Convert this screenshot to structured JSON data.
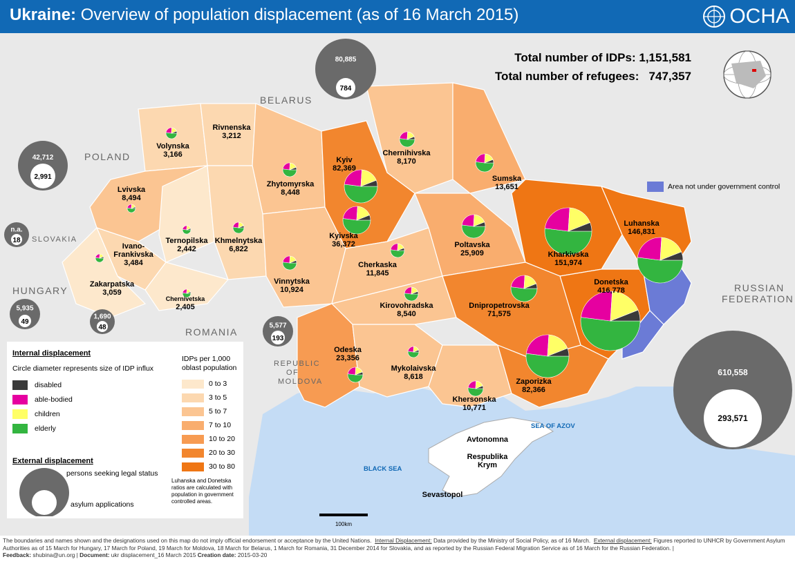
{
  "header": {
    "title_bold": "Ukraine:",
    "title_rest": " Overview of population displacement (as of 16 March 2015)",
    "logo_text": "OCHA"
  },
  "totals": {
    "idps_label": "Total number of IDPs:",
    "idps_value": "1,151,581",
    "refugees_label": "Total number of refugees:",
    "refugees_value": "747,357"
  },
  "countries": {
    "belarus": "BELARUS",
    "poland": "POLAND",
    "slovakia": "SLOVAKIA",
    "hungary": "HUNGARY",
    "romania": "ROMANIA",
    "moldova_1": "REPUBLIC",
    "moldova_2": "OF",
    "moldova_3": "MOLDOVA",
    "russia_1": "RUSSIAN",
    "russia_2": "FEDERATION"
  },
  "seas": {
    "black_sea": "BLACK SEA",
    "azov": "SEA OF AZOV"
  },
  "crimea": {
    "name_1": "Avtonomna",
    "name_2": "Respublika",
    "name_3": "Krym",
    "city": "Sevastopol"
  },
  "oblasts": [
    {
      "name": "Volynska",
      "value": "3,166"
    },
    {
      "name": "Rivnenska",
      "value": "3,212"
    },
    {
      "name": "Lvivska",
      "value": "8,494"
    },
    {
      "name": "Zhytomyrska",
      "value": "8,448"
    },
    {
      "name": "Kyiv",
      "value": "82,369"
    },
    {
      "name": "Chernihivska",
      "value": "8,170"
    },
    {
      "name": "Sumska",
      "value": "13,651"
    },
    {
      "name": "Ternopilska",
      "value": "2,442"
    },
    {
      "name": "Khmelnytska",
      "value": "6,822"
    },
    {
      "name": "Kyivska",
      "value": "36,372"
    },
    {
      "name": "Ivano-",
      "value": ""
    },
    {
      "name": "Frankivska",
      "value": "3,484"
    },
    {
      "name": "Zakarpatska",
      "value": "3,059"
    },
    {
      "name": "Chernivetska",
      "value": "2,405"
    },
    {
      "name": "Vinnytska",
      "value": "10,924"
    },
    {
      "name": "Cherkaska",
      "value": "11,845"
    },
    {
      "name": "Poltavska",
      "value": "25,909"
    },
    {
      "name": "Kharkivska",
      "value": "151,974"
    },
    {
      "name": "Luhanska",
      "value": "146,831"
    },
    {
      "name": "Donetska",
      "value": "416,778"
    },
    {
      "name": "Kirovohradska",
      "value": "8,540"
    },
    {
      "name": "Dnipropetrovska",
      "value": "71,575"
    },
    {
      "name": "Odeska",
      "value": "23,356"
    },
    {
      "name": "Mykolaivska",
      "value": "8,618"
    },
    {
      "name": "Khersonska",
      "value": "10,771"
    },
    {
      "name": "Zaporizka",
      "value": "82,366"
    }
  ],
  "external": [
    {
      "country": "Belarus",
      "seeking": "80,885",
      "asylum": "784"
    },
    {
      "country": "Poland",
      "seeking": "42,712",
      "asylum": "2,991"
    },
    {
      "country": "Slovakia",
      "seeking": "n.a.",
      "asylum": "18"
    },
    {
      "country": "Hungary",
      "seeking": "5,935",
      "asylum": "49"
    },
    {
      "country": "Romania",
      "seeking": "1,690",
      "asylum": "48"
    },
    {
      "country": "Moldova",
      "seeking": "5,577",
      "asylum": "193"
    },
    {
      "country": "Russian Federation",
      "seeking": "610,558",
      "asylum": "293,571"
    }
  ],
  "legend": {
    "internal_title": "Internal displacement",
    "circle_note": "Circle diameter represents size of IDP influx",
    "categories": [
      {
        "label": "disabled",
        "color": "#3a3a3a"
      },
      {
        "label": "able-bodied",
        "color": "#e600a0"
      },
      {
        "label": "children",
        "color": "#ffff66"
      },
      {
        "label": "elderly",
        "color": "#33b540"
      }
    ],
    "ramp_title_1": "IDPs per 1,000",
    "ramp_title_2": "oblast population",
    "ramp": [
      {
        "label": "0 to 3",
        "color": "#fde8cc"
      },
      {
        "label": "3 to 5",
        "color": "#fcd8b0"
      },
      {
        "label": "5 to 7",
        "color": "#fbc592"
      },
      {
        "label": "7  to  10",
        "color": "#f9ad6e"
      },
      {
        "label": "10  to 20",
        "color": "#f79b52"
      },
      {
        "label": "20  to 30",
        "color": "#f2862e"
      },
      {
        "label": "30  to 80",
        "color": "#ef7614"
      }
    ],
    "ramp_note": "Luhanska and Donetska ratios are calculated with population in government controlled areas.",
    "external_title": "External displacement",
    "seeking_label": "persons seeking legal status",
    "asylum_label": "asylum applications",
    "gov_area_label": "Area not under government control"
  },
  "scale_label": "100km",
  "footer": {
    "disclaimer": "The boundaries and names shown and the designations used on this map do not imply official endorsement or acceptance by the United Nations.",
    "internal_label": "Internal Displacement:",
    "internal_text": "Data provided by the Ministry of Social Policy, as of 16 March.",
    "external_label": "External displacement:",
    "external_text": "Figures reported to UNHCR by Government Asylum Authorities as of 15 March for Hungary, 17 March for Poland, 19 March for Moldova, 18 March for Belarus, 1 March for Romania, 31 December 2014 for Slovakia, and as reported by the Russian Federal Migration Service as of 16 March for the Russian Federation.  |",
    "feedback_label": "Feedback:",
    "feedback_value": "shubina@un.org",
    "document_label": "Document:",
    "document_value": "ukr displacement_16 March 2015",
    "creation_label": "Creation date:",
    "creation_value": "2015-03-20"
  },
  "colors": {
    "header_bg": "#1169b5",
    "sea": "#c4dcf5",
    "land_grey": "#e9e9e9",
    "non_gov": "#6b7bd6",
    "circle_grey": "#6a6a6a"
  }
}
